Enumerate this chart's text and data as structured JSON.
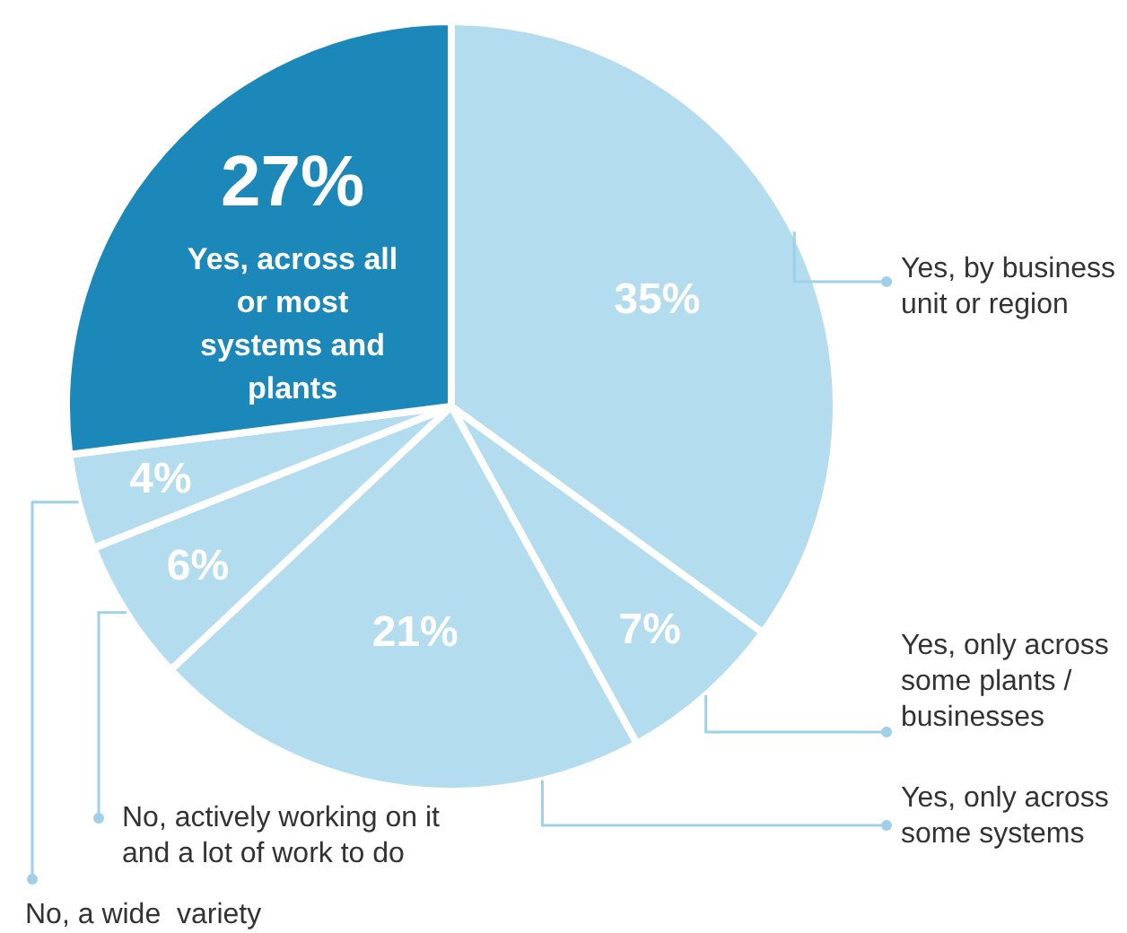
{
  "chart_data": {
    "type": "pie",
    "categories": [
      "Yes, by business unit or region",
      "Yes, only across some plants / businesses",
      "Yes, only across some systems",
      "No, actively working on it and a lot of work to do",
      "No, a wide  variety",
      "Yes, across all or most systems and plants"
    ],
    "values": [
      35,
      7,
      21,
      6,
      4,
      27
    ],
    "colors": [
      "#b3dcef",
      "#b3dcef",
      "#b3dcef",
      "#b3dcef",
      "#b3dcef",
      "#1b88b9"
    ],
    "value_labels": [
      "35%",
      "7%",
      "21%",
      "6%",
      "4%",
      "27%"
    ],
    "legend": false
  }
}
